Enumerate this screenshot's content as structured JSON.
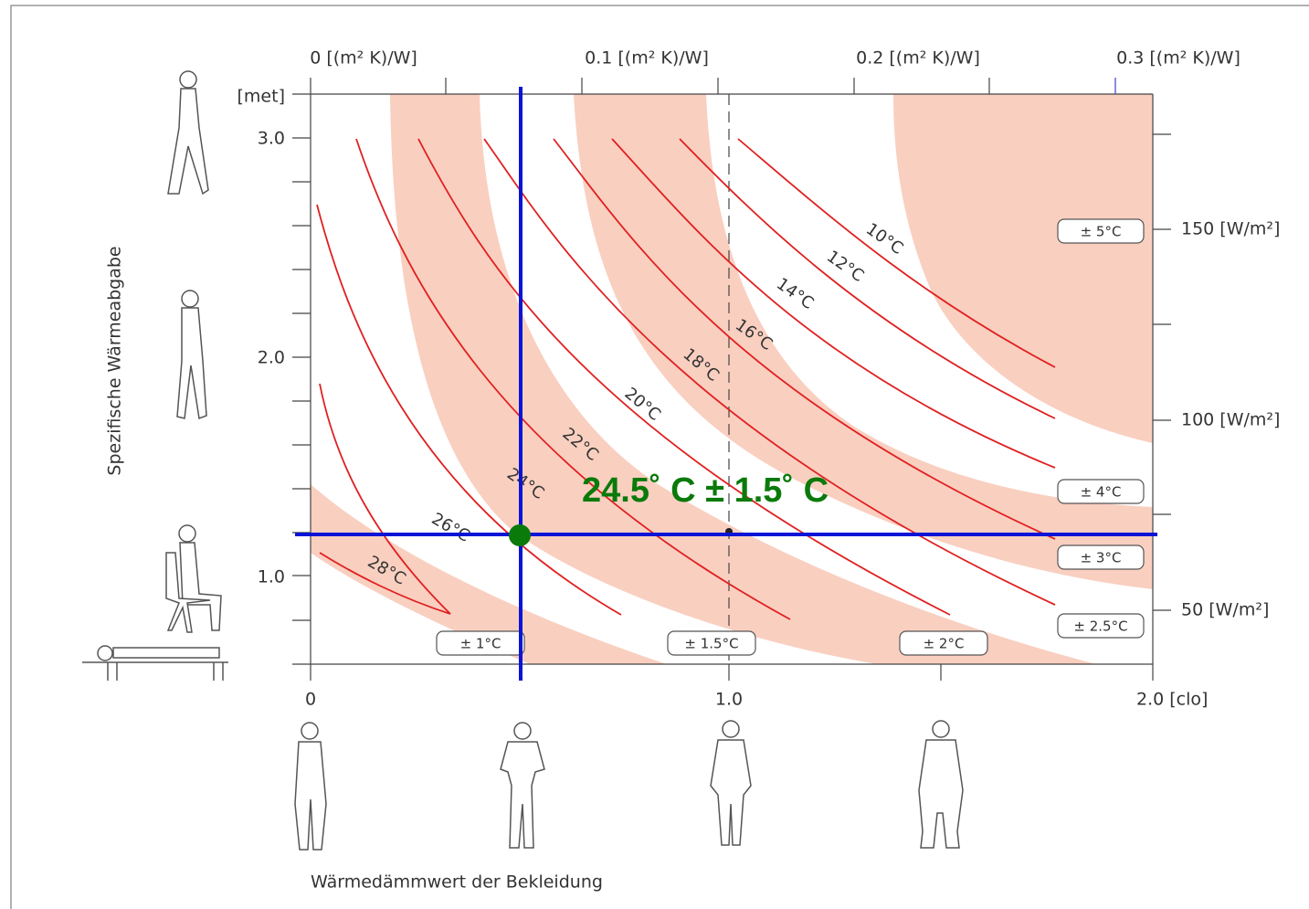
{
  "axes": {
    "y_label": "Spezifische Wärmeabgabe",
    "x_label": "Wärmedämmwert der Bekleidung",
    "met_unit": "[met]",
    "met_ticks": [
      "3.0",
      "2.0",
      "1.0"
    ],
    "clo_ticks": [
      "0",
      "1.0",
      "2.0 [clo]"
    ],
    "top_ticks": [
      "0 [(m² K)/W]",
      "0.1 [(m² K)/W]",
      "0.2 [(m² K)/W]",
      "0.3 [(m² K)/W]"
    ],
    "right_ticks": [
      "150 [W/m²]",
      "100 [W/m²]",
      "50 [W/m²]"
    ]
  },
  "isotherms": [
    "10°C",
    "12°C",
    "14°C",
    "16°C",
    "18°C",
    "20°C",
    "22°C",
    "24°C",
    "26°C",
    "28°C"
  ],
  "tolerances": [
    "± 5°C",
    "± 4°C",
    "± 3°C",
    "± 2.5°C",
    "± 1°C",
    "± 1.5°C",
    "± 2°C"
  ],
  "result": "24.5˚ C ± 1.5˚ C"
}
